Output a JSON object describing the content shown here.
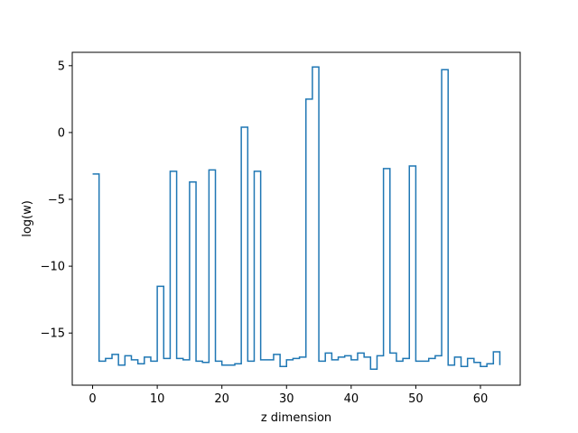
{
  "chart_data": {
    "type": "line",
    "drawstyle": "steps-post",
    "xlabel": "z dimension",
    "ylabel": "log(w)",
    "xlim": [
      -3.15,
      66.15
    ],
    "ylim": [
      -18.9,
      6.0
    ],
    "grid": false,
    "xticks": [
      0,
      10,
      20,
      30,
      40,
      50,
      60
    ],
    "yticks": [
      5,
      0,
      -5,
      -10,
      -15
    ],
    "series": [
      {
        "color": "#1f77b4",
        "x": [
          0,
          1,
          2,
          3,
          4,
          5,
          6,
          7,
          8,
          9,
          10,
          11,
          12,
          13,
          14,
          15,
          16,
          17,
          18,
          19,
          20,
          21,
          22,
          23,
          24,
          25,
          26,
          27,
          28,
          29,
          30,
          31,
          32,
          33,
          34,
          35,
          36,
          37,
          38,
          39,
          40,
          41,
          42,
          43,
          44,
          45,
          46,
          47,
          48,
          49,
          50,
          51,
          52,
          53,
          54,
          55,
          56,
          57,
          58,
          59,
          60,
          61,
          62,
          63
        ],
        "y": [
          -3.1,
          -17.1,
          -16.9,
          -16.6,
          -17.4,
          -16.7,
          -17.0,
          -17.3,
          -16.8,
          -17.1,
          -11.5,
          -16.9,
          -2.9,
          -16.9,
          -17.0,
          -3.7,
          -17.1,
          -17.2,
          -2.8,
          -17.1,
          -17.4,
          -17.4,
          -17.3,
          0.4,
          -17.1,
          -2.9,
          -17.0,
          -17.0,
          -16.6,
          -17.5,
          -17.0,
          -16.9,
          -16.8,
          2.5,
          4.9,
          -17.1,
          -16.5,
          -17.0,
          -16.8,
          -16.7,
          -17.0,
          -16.5,
          -16.8,
          -17.7,
          -16.7,
          -2.7,
          -16.5,
          -17.1,
          -16.9,
          -2.5,
          -17.1,
          -17.1,
          -16.9,
          -16.7,
          4.7,
          -17.4,
          -16.8,
          -17.5,
          -16.9,
          -17.2,
          -17.5,
          -17.3,
          -16.4,
          -17.4
        ]
      }
    ]
  }
}
